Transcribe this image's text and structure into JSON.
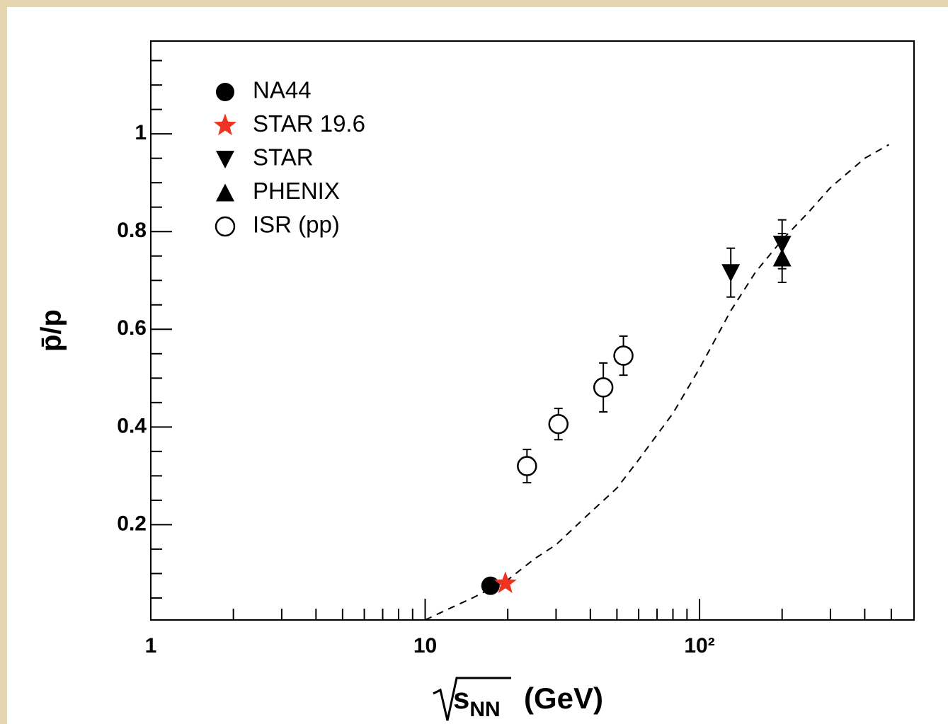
{
  "chart_data": {
    "type": "scatter",
    "x_label": {
      "root": "s",
      "sub": "NN",
      "unit": "(GeV)"
    },
    "y_label": "p̄/p",
    "log_x": true,
    "xlim": [
      1,
      605
    ],
    "ylim": [
      0.005,
      1.19
    ],
    "xticks": [
      1,
      10,
      {
        "value": 100,
        "label": "10²"
      }
    ],
    "xminorticks": [
      2,
      3,
      4,
      5,
      6,
      7,
      8,
      9,
      20,
      30,
      40,
      50,
      60,
      70,
      80,
      90,
      200,
      300,
      400,
      500
    ],
    "yticks": [
      0.2,
      0.4,
      0.6,
      0.8,
      1
    ],
    "yminorticks": [
      0.05,
      0.1,
      0.15,
      0.25,
      0.3,
      0.35,
      0.45,
      0.5,
      0.55,
      0.65,
      0.7,
      0.75,
      0.85,
      0.9,
      0.95,
      1.05,
      1.1,
      1.15
    ],
    "series": [
      {
        "name": "NA44",
        "color": "#000000",
        "marker": "circle",
        "x": [
          17.3
        ],
        "values": [
          0.075
        ]
      },
      {
        "name": "STAR 19.6",
        "color": "#ee3322",
        "marker": "star",
        "x": [
          19.6
        ],
        "values": [
          0.08
        ]
      },
      {
        "name": "STAR",
        "color": "#000000",
        "marker": "triangle-down",
        "x": [
          130,
          200
        ],
        "values": [
          0.716,
          0.774
        ],
        "errors": [
          0.05,
          0.05
        ]
      },
      {
        "name": "PHENIX",
        "color": "#000000",
        "marker": "triangle-up",
        "x": [
          200
        ],
        "values": [
          0.746
        ],
        "errors": [
          0.05
        ]
      },
      {
        "name": "ISR (pp)",
        "color": "#000000",
        "marker": "open-circle",
        "x": [
          23.5,
          30.6,
          44.6,
          52.8
        ],
        "values": [
          0.32,
          0.406,
          0.481,
          0.546
        ],
        "errors": [
          0.034,
          0.032,
          0.05,
          0.04
        ]
      }
    ],
    "curve": {
      "color": "#000000",
      "x": [
        10,
        12,
        15,
        20,
        25,
        30,
        40,
        50,
        60,
        80,
        100,
        130,
        160,
        200,
        250,
        300,
        400,
        490
      ],
      "values": [
        0.005,
        0.026,
        0.051,
        0.087,
        0.13,
        0.159,
        0.225,
        0.275,
        0.333,
        0.428,
        0.52,
        0.638,
        0.717,
        0.783,
        0.84,
        0.89,
        0.95,
        0.978
      ]
    }
  }
}
